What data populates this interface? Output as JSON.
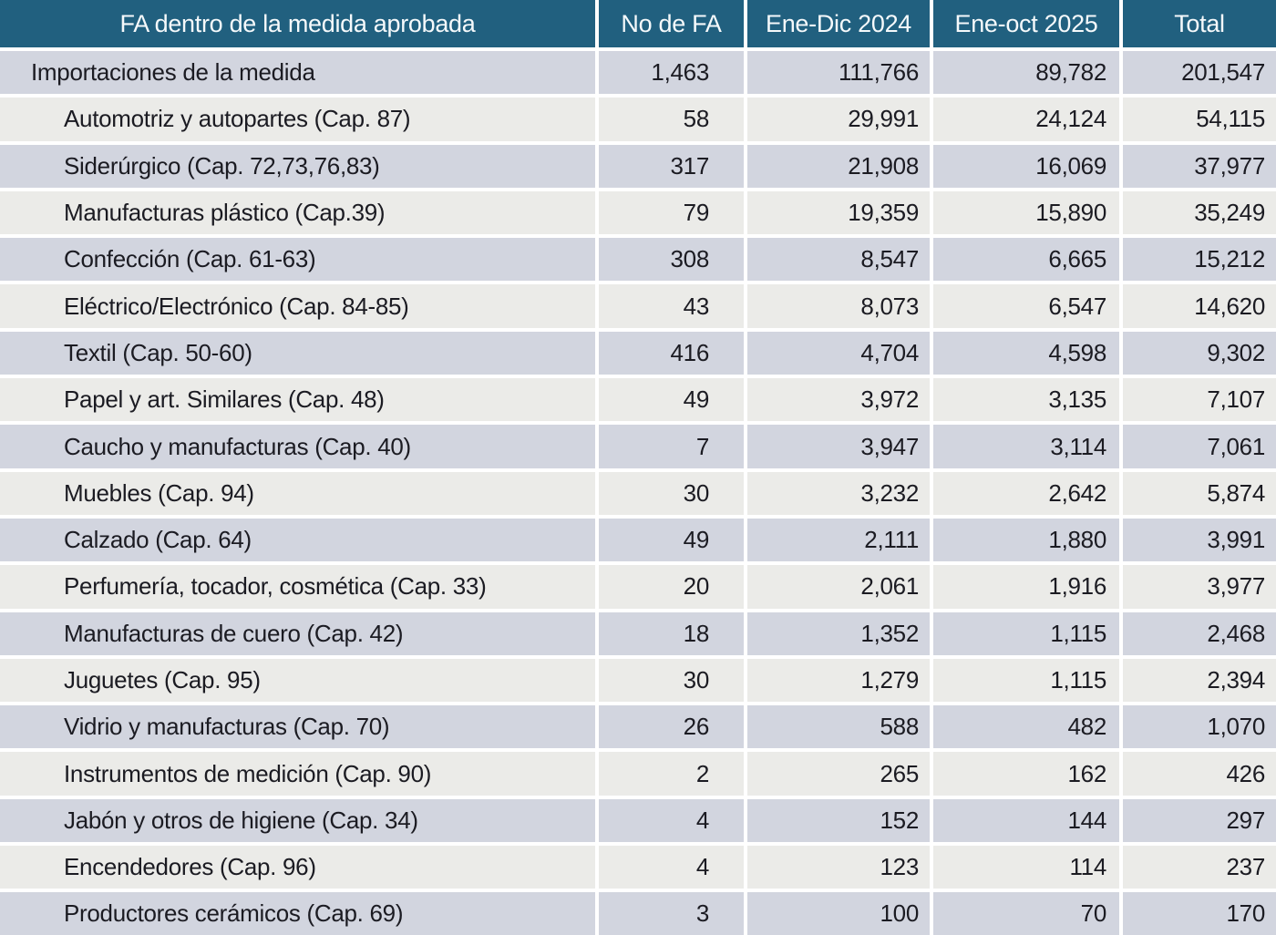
{
  "table": {
    "headers": [
      "FA dentro de la medida aprobada",
      "No de FA",
      "Ene-Dic 2024",
      "Ene-oct 2025",
      "Total"
    ],
    "rows": [
      {
        "indent": 0,
        "cells": [
          "Importaciones de la medida",
          "1,463",
          "111,766",
          "89,782",
          "201,547"
        ]
      },
      {
        "indent": 1,
        "cells": [
          "Automotriz y autopartes (Cap. 87)",
          "58",
          "29,991",
          "24,124",
          "54,115"
        ]
      },
      {
        "indent": 1,
        "cells": [
          "Siderúrgico (Cap. 72,73,76,83)",
          "317",
          "21,908",
          "16,069",
          "37,977"
        ]
      },
      {
        "indent": 1,
        "cells": [
          "Manufacturas plástico (Cap.39)",
          "79",
          "19,359",
          "15,890",
          "35,249"
        ]
      },
      {
        "indent": 1,
        "cells": [
          "Confección (Cap. 61-63)",
          "308",
          "8,547",
          "6,665",
          "15,212"
        ]
      },
      {
        "indent": 1,
        "cells": [
          "Eléctrico/Electrónico (Cap. 84-85)",
          "43",
          "8,073",
          "6,547",
          "14,620"
        ]
      },
      {
        "indent": 1,
        "cells": [
          "Textil (Cap. 50-60)",
          "416",
          "4,704",
          "4,598",
          "9,302"
        ]
      },
      {
        "indent": 1,
        "cells": [
          "Papel y art. Similares (Cap. 48)",
          "49",
          "3,972",
          "3,135",
          "7,107"
        ]
      },
      {
        "indent": 1,
        "cells": [
          "Caucho y manufacturas (Cap. 40)",
          "7",
          "3,947",
          "3,114",
          "7,061"
        ]
      },
      {
        "indent": 1,
        "cells": [
          "Muebles (Cap. 94)",
          "30",
          "3,232",
          "2,642",
          "5,874"
        ]
      },
      {
        "indent": 1,
        "cells": [
          "Calzado (Cap. 64)",
          "49",
          "2,111",
          "1,880",
          "3,991"
        ]
      },
      {
        "indent": 1,
        "cells": [
          "Perfumería, tocador, cosmética (Cap. 33)",
          "20",
          "2,061",
          "1,916",
          "3,977"
        ]
      },
      {
        "indent": 1,
        "cells": [
          "Manufacturas de cuero (Cap. 42)",
          "18",
          "1,352",
          "1,115",
          "2,468"
        ]
      },
      {
        "indent": 1,
        "cells": [
          "Juguetes (Cap. 95)",
          "30",
          "1,279",
          "1,115",
          "2,394"
        ]
      },
      {
        "indent": 1,
        "cells": [
          "Vidrio y manufacturas (Cap. 70)",
          "26",
          "588",
          "482",
          "1,070"
        ]
      },
      {
        "indent": 1,
        "cells": [
          "Instrumentos de medición (Cap. 90)",
          "2",
          "265",
          "162",
          "426"
        ]
      },
      {
        "indent": 1,
        "cells": [
          "Jabón y otros de higiene (Cap. 34)",
          "4",
          "152",
          "144",
          "297"
        ]
      },
      {
        "indent": 1,
        "cells": [
          "Encendedores (Cap. 96)",
          "4",
          "123",
          "114",
          "237"
        ]
      },
      {
        "indent": 1,
        "cells": [
          "Productores cerámicos (Cap. 69)",
          "3",
          "100",
          "70",
          "170"
        ]
      }
    ]
  },
  "chart_data": {
    "type": "table",
    "title": "FA dentro de la medida aprobada",
    "columns": [
      "FA dentro de la medida aprobada",
      "No de FA",
      "Ene-Dic 2024",
      "Ene-oct 2025",
      "Total"
    ],
    "rows": [
      [
        "Importaciones de la medida",
        1463,
        111766,
        89782,
        201547
      ],
      [
        "Automotriz y autopartes (Cap. 87)",
        58,
        29991,
        24124,
        54115
      ],
      [
        "Siderúrgico (Cap. 72,73,76,83)",
        317,
        21908,
        16069,
        37977
      ],
      [
        "Manufacturas plástico (Cap.39)",
        79,
        19359,
        15890,
        35249
      ],
      [
        "Confección (Cap. 61-63)",
        308,
        8547,
        6665,
        15212
      ],
      [
        "Eléctrico/Electrónico (Cap. 84-85)",
        43,
        8073,
        6547,
        14620
      ],
      [
        "Textil (Cap. 50-60)",
        416,
        4704,
        4598,
        9302
      ],
      [
        "Papel y art. Similares (Cap. 48)",
        49,
        3972,
        3135,
        7107
      ],
      [
        "Caucho y manufacturas (Cap. 40)",
        7,
        3947,
        3114,
        7061
      ],
      [
        "Muebles (Cap. 94)",
        30,
        3232,
        2642,
        5874
      ],
      [
        "Calzado (Cap. 64)",
        49,
        2111,
        1880,
        3991
      ],
      [
        "Perfumería, tocador, cosmética (Cap. 33)",
        20,
        2061,
        1916,
        3977
      ],
      [
        "Manufacturas de cuero (Cap. 42)",
        18,
        1352,
        1115,
        2468
      ],
      [
        "Juguetes (Cap. 95)",
        30,
        1279,
        1115,
        2394
      ],
      [
        "Vidrio y manufacturas (Cap. 70)",
        26,
        588,
        482,
        1070
      ],
      [
        "Instrumentos de medición (Cap. 90)",
        2,
        265,
        162,
        426
      ],
      [
        "Jabón y otros de higiene (Cap. 34)",
        4,
        152,
        144,
        297
      ],
      [
        "Encendedores (Cap. 96)",
        4,
        123,
        114,
        237
      ],
      [
        "Productores cerámicos (Cap. 69)",
        3,
        100,
        70,
        170
      ]
    ]
  },
  "colors": {
    "header_bg": "#21607f",
    "header_text": "#f5f9fb",
    "row_blue_gray": "#d2d5df",
    "row_off_white": "#ebebe8",
    "separator": "#ffffff",
    "body_text": "#1b1b22"
  }
}
